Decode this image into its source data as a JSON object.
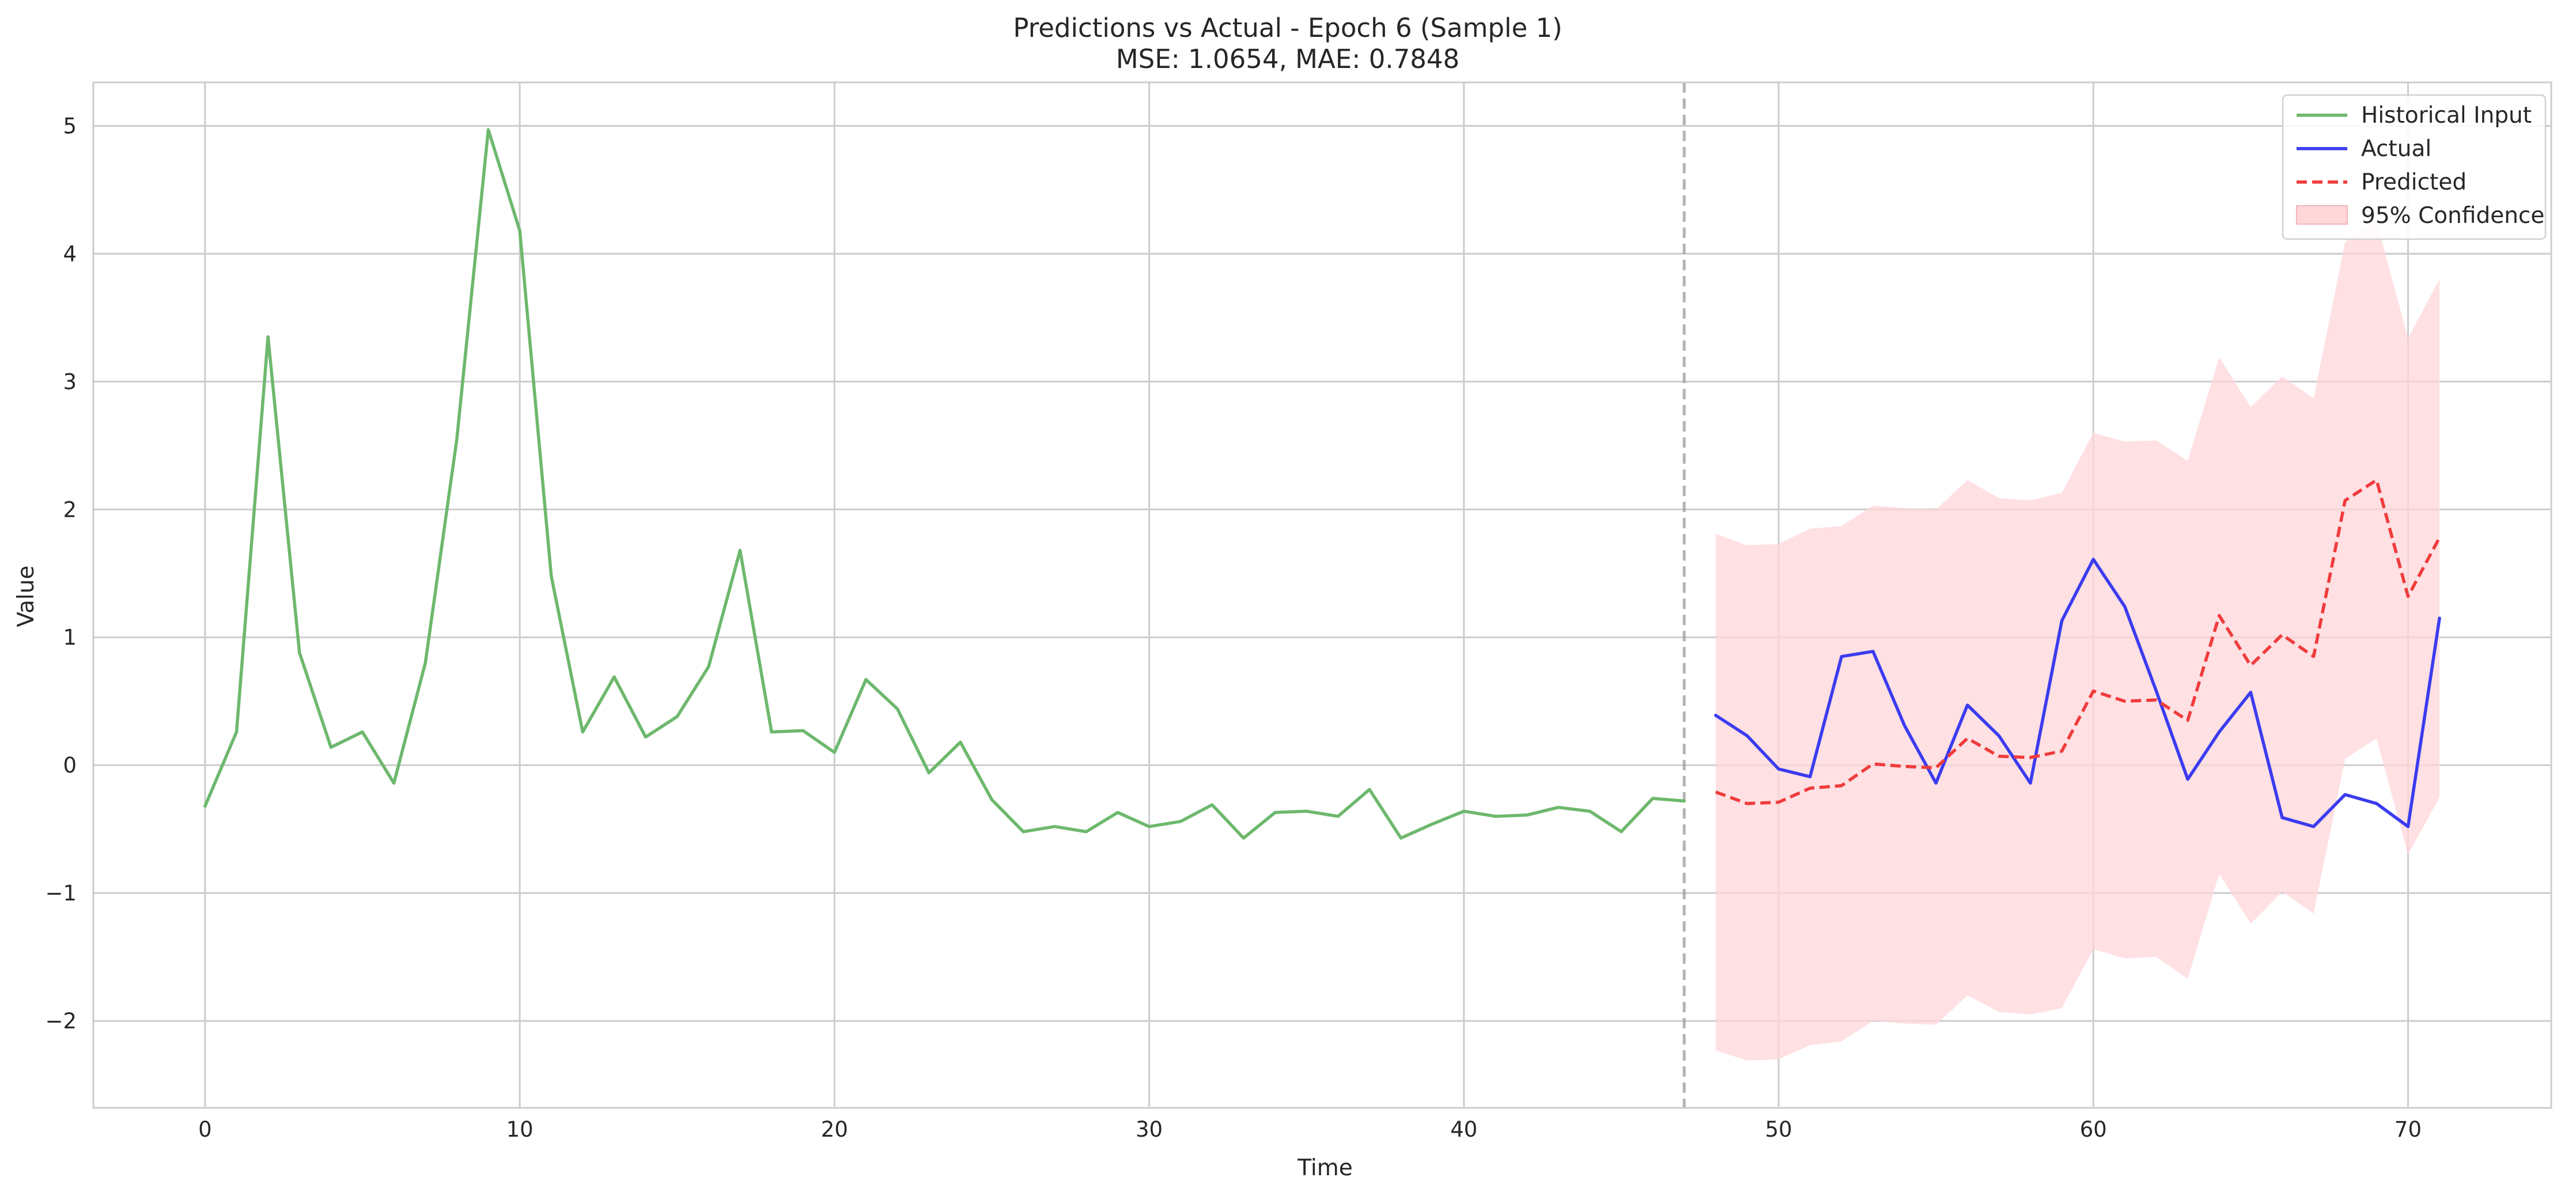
{
  "chart_data": {
    "type": "line",
    "title": "Predictions vs Actual - Epoch 6 (Sample 1)",
    "subtitle": "MSE: 1.0654, MAE: 0.7848",
    "xlabel": "Time",
    "ylabel": "Value",
    "xlim": [
      -3.55,
      74.55
    ],
    "ylim": [
      -2.68,
      5.34
    ],
    "x_ticks": [
      0,
      10,
      20,
      30,
      40,
      50,
      60,
      70
    ],
    "y_ticks": [
      -2,
      -1,
      0,
      1,
      2,
      3,
      4,
      5
    ],
    "x_tick_labels": [
      "0",
      "10",
      "20",
      "30",
      "40",
      "50",
      "60",
      "70"
    ],
    "y_tick_labels": [
      "−2",
      "−1",
      "0",
      "1",
      "2",
      "3",
      "4",
      "5"
    ],
    "grid": true,
    "legend_position": "top-right",
    "forecast_start_marker": 47,
    "series": [
      {
        "name": "Historical Input",
        "color": "#6db86d",
        "style": "solid",
        "x": [
          0,
          1,
          2,
          3,
          4,
          5,
          6,
          7,
          8,
          9,
          10,
          11,
          12,
          13,
          14,
          15,
          16,
          17,
          18,
          19,
          20,
          21,
          22,
          23,
          24,
          25,
          26,
          27,
          28,
          29,
          30,
          31,
          32,
          33,
          34,
          35,
          36,
          37,
          38,
          39,
          40,
          41,
          42,
          43,
          44,
          45,
          46,
          47
        ],
        "values": [
          -0.32,
          0.26,
          3.35,
          0.88,
          0.14,
          0.26,
          -0.14,
          0.8,
          2.55,
          4.97,
          4.18,
          1.48,
          0.26,
          0.69,
          0.22,
          0.38,
          0.77,
          1.68,
          0.26,
          0.27,
          0.1,
          0.67,
          0.44,
          -0.06,
          0.18,
          -0.27,
          -0.52,
          -0.48,
          -0.52,
          -0.37,
          -0.48,
          -0.44,
          -0.31,
          -0.57,
          -0.37,
          -0.36,
          -0.4,
          -0.19,
          -0.57,
          -0.46,
          -0.36,
          -0.4,
          -0.39,
          -0.33,
          -0.36,
          -0.52,
          -0.26,
          -0.28
        ]
      },
      {
        "name": "Actual",
        "color": "#3b3bf0",
        "style": "solid",
        "x": [
          48,
          49,
          50,
          51,
          52,
          53,
          54,
          55,
          56,
          57,
          58,
          59,
          60,
          61,
          62,
          63,
          64,
          65,
          66,
          67,
          68,
          69,
          70,
          71
        ],
        "values": [
          0.39,
          0.23,
          -0.03,
          -0.09,
          0.85,
          0.89,
          0.31,
          -0.14,
          0.47,
          0.23,
          -0.14,
          1.13,
          1.61,
          1.24,
          0.58,
          -0.11,
          0.26,
          0.57,
          -0.41,
          -0.48,
          -0.23,
          -0.3,
          -0.48,
          1.15
        ]
      },
      {
        "name": "Predicted",
        "color": "#f03b3b",
        "style": "dashed",
        "x": [
          48,
          49,
          50,
          51,
          52,
          53,
          54,
          55,
          56,
          57,
          58,
          59,
          60,
          61,
          62,
          63,
          64,
          65,
          66,
          67,
          68,
          69,
          70,
          71
        ],
        "values": [
          -0.21,
          -0.3,
          -0.29,
          -0.18,
          -0.16,
          0.01,
          -0.01,
          -0.02,
          0.21,
          0.07,
          0.06,
          0.11,
          0.58,
          0.5,
          0.51,
          0.35,
          1.17,
          0.78,
          1.02,
          0.85,
          2.07,
          2.23,
          1.32,
          1.78
        ]
      }
    ],
    "confidence_band": {
      "name": "95% Confidence",
      "color": "#ffd6d9",
      "x": [
        48,
        49,
        50,
        51,
        52,
        53,
        54,
        55,
        56,
        57,
        58,
        59,
        60,
        61,
        62,
        63,
        64,
        65,
        66,
        67,
        68,
        69,
        70,
        71
      ],
      "lower": [
        -2.23,
        -2.31,
        -2.3,
        -2.19,
        -2.16,
        -2.0,
        -2.02,
        -2.03,
        -1.8,
        -1.93,
        -1.95,
        -1.9,
        -1.44,
        -1.51,
        -1.5,
        -1.67,
        -0.85,
        -1.24,
        -0.99,
        -1.16,
        0.05,
        0.21,
        -0.7,
        -0.25
      ],
      "upper": [
        1.81,
        1.72,
        1.73,
        1.85,
        1.87,
        2.03,
        2.01,
        2.0,
        2.23,
        2.09,
        2.07,
        2.13,
        2.6,
        2.53,
        2.54,
        2.38,
        3.19,
        2.8,
        3.04,
        2.87,
        4.09,
        4.25,
        3.34,
        3.8
      ]
    }
  }
}
